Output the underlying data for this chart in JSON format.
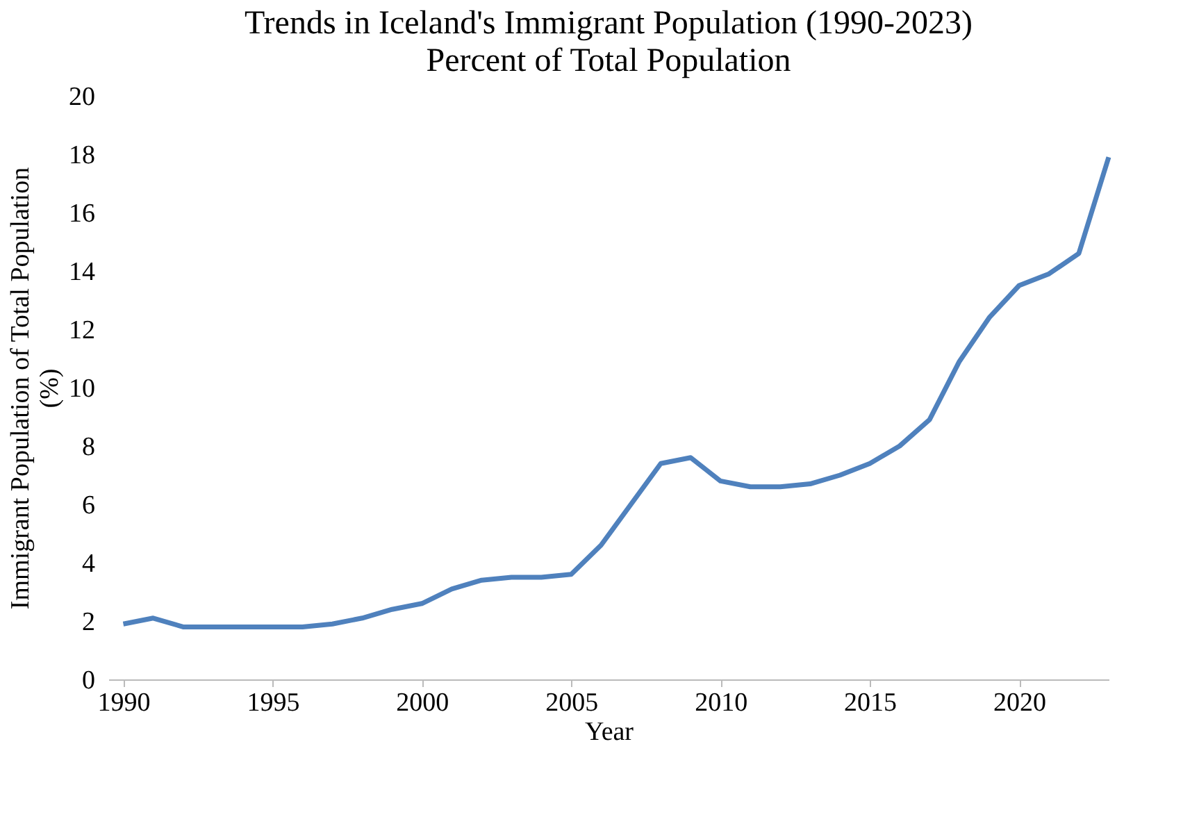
{
  "chart_data": {
    "type": "line",
    "title": "Trends in Iceland's Immigrant Population (1990-2023)",
    "subtitle": "Percent of Total Population",
    "xlabel": "Year",
    "ylabel": "Immigrant Population of Total Population\n(%)",
    "x": [
      1990,
      1991,
      1992,
      1993,
      1994,
      1995,
      1996,
      1997,
      1998,
      1999,
      2000,
      2001,
      2002,
      2003,
      2004,
      2005,
      2006,
      2007,
      2008,
      2009,
      2010,
      2011,
      2012,
      2013,
      2014,
      2015,
      2016,
      2017,
      2018,
      2019,
      2020,
      2021,
      2022,
      2023
    ],
    "series": [
      {
        "color": "#4f81bd",
        "values": [
          1.9,
          2.1,
          1.8,
          1.8,
          1.8,
          1.8,
          1.8,
          1.9,
          2.1,
          2.4,
          2.6,
          3.1,
          3.4,
          3.5,
          3.5,
          3.6,
          4.6,
          6.0,
          7.4,
          7.6,
          6.8,
          6.6,
          6.6,
          6.7,
          7.0,
          7.4,
          8.0,
          8.9,
          10.9,
          12.4,
          13.5,
          13.9,
          14.6,
          17.9
        ]
      }
    ],
    "xlim": [
      1989.5,
      2023
    ],
    "xticks": [
      1990,
      1995,
      2000,
      2005,
      2010,
      2015,
      2020
    ],
    "ylim": [
      0,
      20
    ],
    "yticks": [
      0,
      2,
      4,
      6,
      8,
      10,
      12,
      14,
      16,
      18,
      20
    ],
    "grid": false,
    "marker": "none",
    "line_style": "solid"
  }
}
